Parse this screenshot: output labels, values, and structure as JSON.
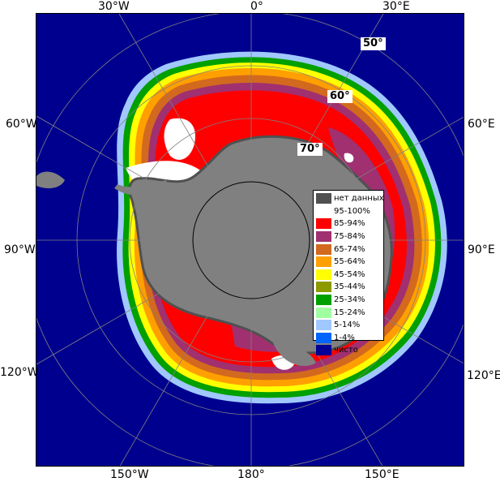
{
  "map": {
    "ocean_color": "#00008f",
    "land_color": "#808080",
    "nodata_color": "#505050",
    "longitude_labels": {
      "top_left": "30°W",
      "top_center": "0°",
      "top_right": "30°E",
      "left_upper": "60°W",
      "right_upper": "60°E",
      "left_middle": "90°W",
      "right_middle": "90°E",
      "left_lower": "120°W",
      "right_lower": "120°E",
      "bottom_left": "150°W",
      "bottom_center": "180°",
      "bottom_right": "150°E"
    },
    "latitude_labels": {
      "lat50": "50°",
      "lat60": "60°",
      "lat70": "70°"
    }
  },
  "legend": {
    "items": [
      {
        "label": "нет данных",
        "color": "#505050"
      },
      {
        "label": "95-100%",
        "color": "#ffffff"
      },
      {
        "label": "85-94%",
        "color": "#ff0000"
      },
      {
        "label": "75-84%",
        "color": "#a0306f"
      },
      {
        "label": "65-74%",
        "color": "#d2691e"
      },
      {
        "label": "55-64%",
        "color": "#ffa000"
      },
      {
        "label": "45-54%",
        "color": "#ffff00"
      },
      {
        "label": "35-44%",
        "color": "#8c9a00"
      },
      {
        "label": "25-34%",
        "color": "#00a000"
      },
      {
        "label": "15-24%",
        "color": "#a0ffa0"
      },
      {
        "label": "5-14%",
        "color": "#a0c8ff"
      },
      {
        "label": "1-4%",
        "color": "#0064ff"
      },
      {
        "label": "чисто",
        "color": "#000096"
      }
    ]
  }
}
